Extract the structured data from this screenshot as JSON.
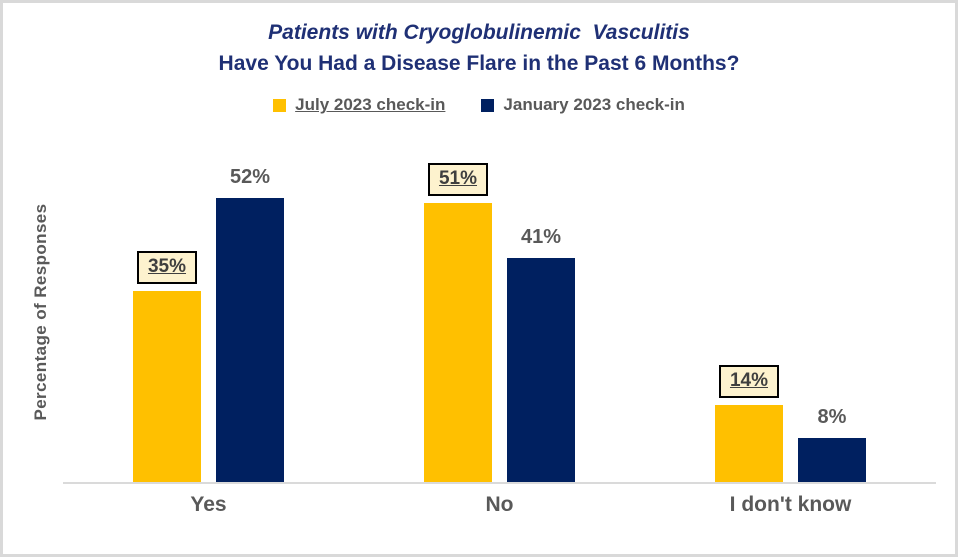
{
  "header": {
    "title_line1": "Patients with Cryoglobulinemic  Vasculitis",
    "title_line2": "Have You Had a Disease Flare in the Past 6 Months?"
  },
  "colors": {
    "title_navy": "#1F3075",
    "bar_yellow": "#FFC000",
    "bar_navy": "#002060",
    "text_gray": "#595959",
    "label_box_bg": "#FDF2CE",
    "label_box_border": "#000000",
    "axis_line": "#DADADA",
    "frame_border": "#D9D9D9"
  },
  "chart_data": {
    "type": "bar",
    "title": "Patients with Cryoglobulinemic Vasculitis — Have You Had a Disease Flare in the Past 6 Months?",
    "categories": [
      "Yes",
      "No",
      "I don't know"
    ],
    "series": [
      {
        "name": "July 2023 check-in",
        "values": [
          35,
          51,
          14
        ],
        "color": "#FFC000",
        "data_label_style": "boxed-underlined"
      },
      {
        "name": "January 2023 check-in",
        "values": [
          52,
          41,
          8
        ],
        "color": "#002060",
        "data_label_style": "plain"
      }
    ],
    "value_labels": [
      [
        "35%",
        "51%",
        "14%"
      ],
      [
        "52%",
        "41%",
        "8%"
      ]
    ],
    "xlabel": "",
    "ylabel": "Percentage of Responses",
    "ylim": [
      0,
      62
    ],
    "grid": false,
    "legend_position": "top-center",
    "data_label_suffix": "%"
  }
}
